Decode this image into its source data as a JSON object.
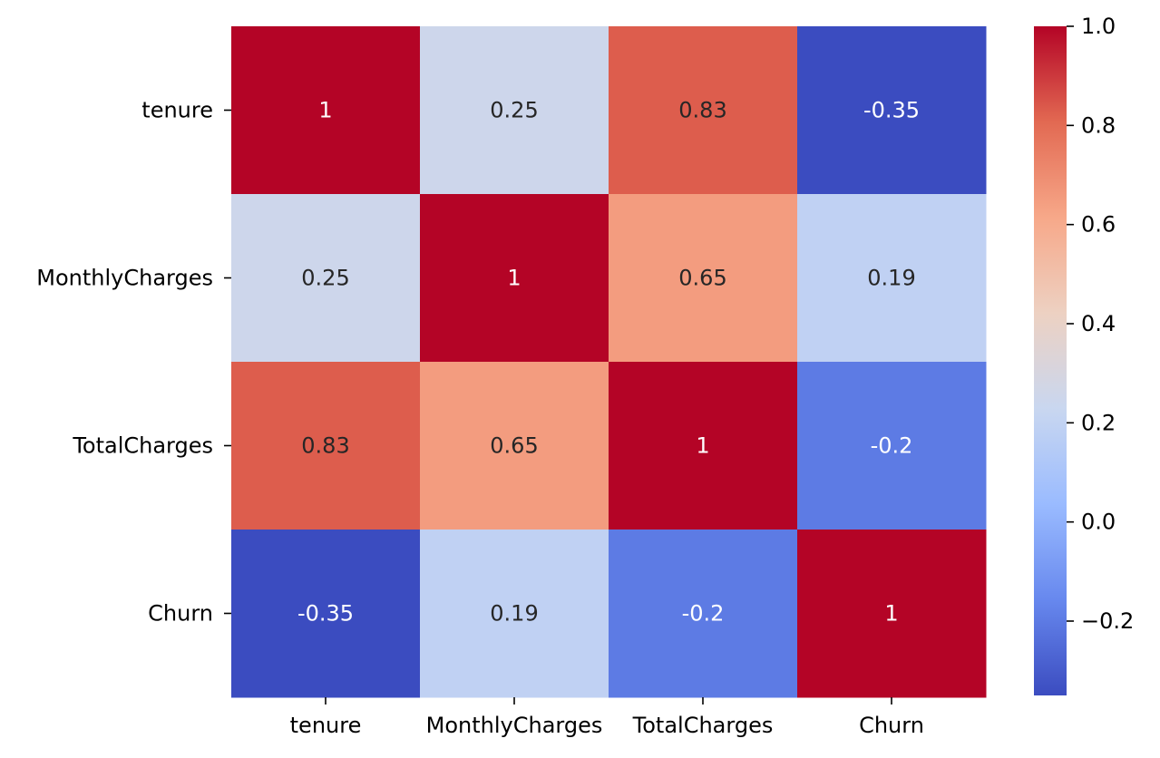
{
  "chart_data": {
    "type": "heatmap",
    "title": "",
    "xlabel": "",
    "ylabel": "",
    "x_labels": [
      "tenure",
      "MonthlyCharges",
      "TotalCharges",
      "Churn"
    ],
    "y_labels": [
      "tenure",
      "MonthlyCharges",
      "TotalCharges",
      "Churn"
    ],
    "values": [
      [
        1,
        0.25,
        0.83,
        -0.35
      ],
      [
        0.25,
        1,
        0.65,
        0.19
      ],
      [
        0.83,
        0.65,
        1,
        -0.2
      ],
      [
        -0.35,
        0.19,
        -0.2,
        1
      ]
    ],
    "annotations": [
      [
        "1",
        "0.25",
        "0.83",
        "-0.35"
      ],
      [
        "0.25",
        "1",
        "0.65",
        "0.19"
      ],
      [
        "0.83",
        "0.65",
        "1",
        "-0.2"
      ],
      [
        "-0.35",
        "0.19",
        "-0.2",
        "1"
      ]
    ],
    "colormap": "coolwarm",
    "value_range": [
      -0.35,
      1.0
    ],
    "colorbar": {
      "ticks": [
        1.0,
        0.8,
        0.6,
        0.4,
        0.2,
        0.0,
        -0.2
      ],
      "tick_labels": [
        "1.0",
        "0.8",
        "0.6",
        "0.4",
        "0.2",
        "0.0",
        "−0.2"
      ]
    },
    "colormap_stops": [
      "#3b4cc0",
      "#6788ee",
      "#9abbff",
      "#c9d7f0",
      "#edd1c2",
      "#f7a889",
      "#e26952",
      "#b40426"
    ],
    "annotation_colors": {
      "light": "#ffffff",
      "dark": "#262626"
    }
  }
}
